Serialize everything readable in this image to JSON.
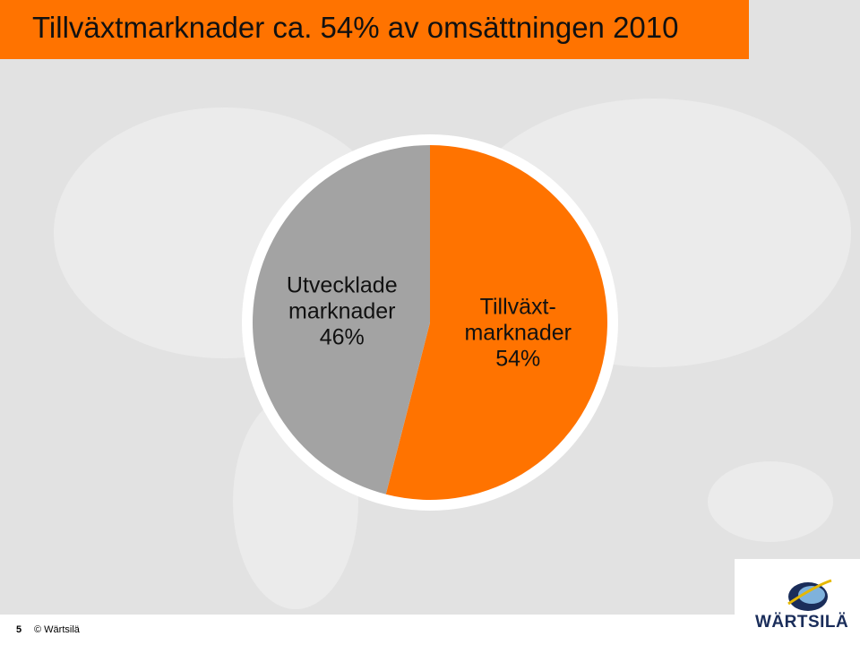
{
  "chart_data": {
    "type": "pie",
    "title": "Tillväxtmarknader ca. 54% av omsättningen 2010",
    "categories": [
      "Tillväxt-marknader",
      "Utvecklade marknader"
    ],
    "values": [
      54,
      46
    ],
    "value_labels": [
      "54%",
      "46%"
    ],
    "colors": [
      "#ff7300",
      "#a3a3a3"
    ]
  },
  "footer": {
    "page": "5",
    "copyright": "© Wärtsilä",
    "logo": "WÄRTSILÄ"
  }
}
